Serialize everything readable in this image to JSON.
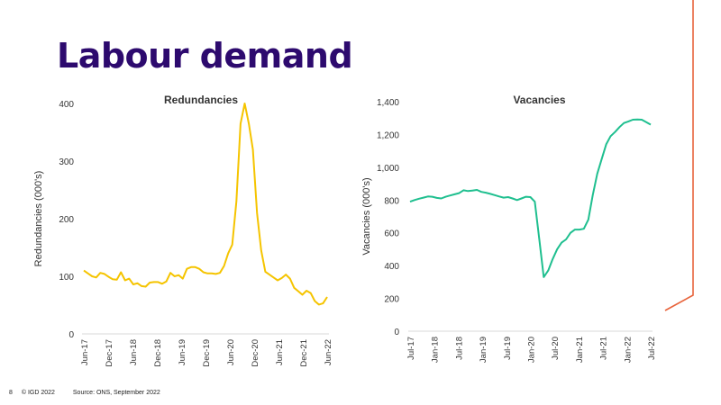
{
  "page": {
    "title": "Labour demand",
    "footer": {
      "page_number": "8",
      "copyright": "© IGD 2022",
      "source": "Source: ONS, September 2022"
    },
    "accent_color": "#e8643c",
    "title_color": "#2d0a6e"
  },
  "chart_data": [
    {
      "type": "line",
      "title": "Redundancies",
      "xlabel": "",
      "ylabel": "Redundancies (000's)",
      "ylim": [
        0,
        400
      ],
      "yticks": [
        "0",
        "100",
        "200",
        "300",
        "400"
      ],
      "ytick_values": [
        0,
        100,
        200,
        300,
        400
      ],
      "xtick_labels": [
        "Jun-17",
        "Dec-17",
        "Jun-18",
        "Dec-18",
        "Jun-19",
        "Dec-19",
        "Jun-20",
        "Dec-20",
        "Jun-21",
        "Dec-21",
        "Jun-22"
      ],
      "grid": false,
      "legend": "none",
      "color": "#f5c400",
      "x_start": "Jun-17",
      "x_end": "Jun-22",
      "series": [
        {
          "name": "Redundancies",
          "values": [
            110,
            105,
            100,
            98,
            106,
            104,
            99,
            95,
            94,
            107,
            93,
            96,
            86,
            88,
            83,
            82,
            89,
            90,
            90,
            87,
            91,
            106,
            100,
            102,
            96,
            113,
            116,
            116,
            113,
            107,
            105,
            105,
            104,
            106,
            118,
            140,
            155,
            230,
            365,
            400,
            365,
            320,
            210,
            145,
            108,
            103,
            98,
            93,
            97,
            103,
            96,
            80,
            74,
            68,
            75,
            71,
            57,
            51,
            53,
            64
          ]
        }
      ]
    },
    {
      "type": "line",
      "title": "Vacancies",
      "xlabel": "",
      "ylabel": "Vacancies (000's)",
      "ylim": [
        0,
        1400
      ],
      "yticks": [
        "0",
        "200",
        "400",
        "600",
        "800",
        "1,000",
        "1,200",
        "1,400"
      ],
      "ytick_values": [
        0,
        200,
        400,
        600,
        800,
        1000,
        1200,
        1400
      ],
      "xtick_labels": [
        "Jul-17",
        "Jan-18",
        "Jul-18",
        "Jan-19",
        "Jul-19",
        "Jan-20",
        "Jul-20",
        "Jan-21",
        "Jul-21",
        "Jan-22",
        "Jul-22"
      ],
      "grid": false,
      "legend": "none",
      "color": "#1fbf8f",
      "x_start": "Jul-17",
      "x_end": "Jul-22",
      "series": [
        {
          "name": "Vacancies",
          "values": [
            790,
            800,
            808,
            815,
            822,
            820,
            813,
            810,
            820,
            828,
            835,
            842,
            860,
            855,
            858,
            862,
            850,
            845,
            838,
            830,
            822,
            815,
            818,
            810,
            800,
            810,
            820,
            818,
            790,
            560,
            330,
            370,
            440,
            500,
            540,
            560,
            600,
            620,
            620,
            625,
            680,
            830,
            960,
            1050,
            1140,
            1190,
            1215,
            1245,
            1270,
            1280,
            1290,
            1292,
            1290,
            1275,
            1260
          ]
        }
      ]
    }
  ]
}
